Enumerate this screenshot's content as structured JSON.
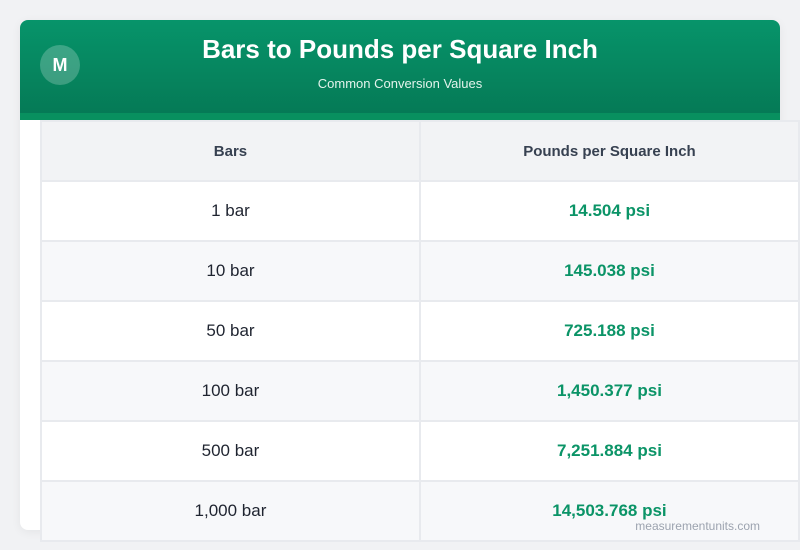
{
  "header": {
    "logo_letter": "M",
    "title": "Bars to Pounds per Square Inch",
    "subtitle": "Common Conversion Values"
  },
  "table": {
    "columns": [
      "Bars",
      "Pounds per Square Inch"
    ],
    "rows": [
      {
        "bars": "1 bar",
        "psi": "14.504 psi"
      },
      {
        "bars": "10 bar",
        "psi": "145.038 psi"
      },
      {
        "bars": "50 bar",
        "psi": "725.188 psi"
      },
      {
        "bars": "100 bar",
        "psi": "1,450.377 psi"
      },
      {
        "bars": "500 bar",
        "psi": "7,251.884 psi"
      },
      {
        "bars": "1,000 bar",
        "psi": "14,503.768 psi"
      }
    ]
  },
  "footer": {
    "watermark": "measurementunits.com"
  },
  "colors": {
    "header_green": "#07946a",
    "value_green": "#0b9467",
    "background": "#f1f2f4"
  }
}
